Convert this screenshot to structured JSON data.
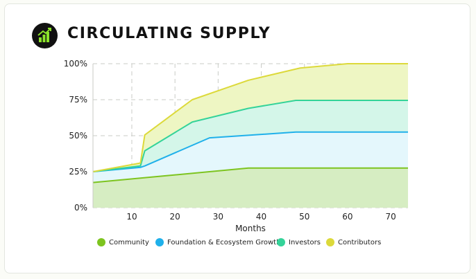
{
  "header": {
    "title": "CIRCULATING SUPPLY",
    "logo_icon": "chart-growth-icon"
  },
  "colors": {
    "community": "#7dc41f",
    "foundation": "#1fb0ea",
    "investors": "#34d399",
    "contributors": "#dcd93a",
    "background": "#ffffff"
  },
  "chart_data": {
    "type": "area",
    "stacked": true,
    "xlabel": "Months",
    "ylabel": "",
    "xlim": [
      1,
      74
    ],
    "ylim": [
      0,
      100
    ],
    "x_ticks": [
      10,
      20,
      30,
      40,
      50,
      60,
      70
    ],
    "x_tick_labels": [
      "10",
      "20",
      "30",
      "40",
      "50",
      "60",
      "70"
    ],
    "y_ticks": [
      0,
      25,
      50,
      75,
      100
    ],
    "y_tick_labels": [
      "0%",
      "25%",
      "50%",
      "75%",
      "100%"
    ],
    "grid": true,
    "legend_position": "bottom",
    "series": [
      {
        "name": "Community",
        "color_key": "community",
        "x": [
          1,
          37,
          74
        ],
        "y": [
          17.5,
          27.5,
          27.5
        ]
      },
      {
        "name": "Foundation & Ecosystem Growth",
        "color_key": "foundation",
        "x": [
          1,
          12,
          13,
          28,
          48,
          74
        ],
        "y": [
          25,
          28,
          29,
          48.5,
          52.5,
          52.5
        ]
      },
      {
        "name": "Investors",
        "color_key": "investors",
        "x": [
          1,
          12,
          13,
          24,
          37,
          48,
          74
        ],
        "y": [
          25,
          29,
          39.5,
          59.5,
          69,
          74.5,
          74.5
        ]
      },
      {
        "name": "Contributors",
        "color_key": "contributors",
        "x": [
          1,
          12,
          13,
          24,
          37,
          49,
          60,
          74
        ],
        "y": [
          25,
          31,
          50.5,
          75,
          88.5,
          97,
          100,
          100
        ]
      }
    ]
  }
}
